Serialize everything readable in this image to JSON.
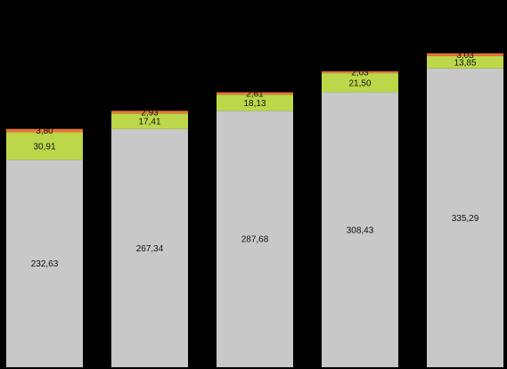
{
  "chart_data": {
    "type": "bar",
    "stacked": true,
    "categories": [
      "",
      "",
      "",
      "",
      ""
    ],
    "series": [
      {
        "color": "#c8c8c8",
        "values": [
          232.63,
          267.34,
          287.68,
          308.43,
          335.29
        ],
        "labels": [
          "232,63",
          "267,34",
          "287,68",
          "308,43",
          "335,29"
        ]
      },
      {
        "color": "#bcd84a",
        "values": [
          30.91,
          17.41,
          18.13,
          21.5,
          13.85
        ],
        "labels": [
          "30,91",
          "17,41",
          "18,13",
          "21,50",
          "13,85"
        ]
      },
      {
        "color": "#ec7635",
        "values": [
          3.8,
          2.93,
          2.61,
          2.03,
          3.03
        ],
        "labels": [
          "3,80",
          "2,93",
          "2,61",
          "2,03",
          "3,03"
        ]
      }
    ],
    "grid": false,
    "legend": "none",
    "background": "#000000"
  }
}
